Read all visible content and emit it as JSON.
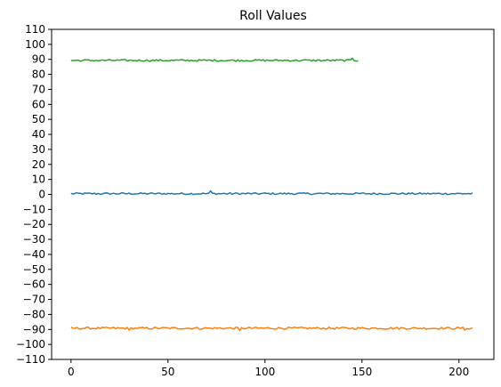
{
  "chart_data": {
    "type": "line",
    "title": "Roll Values",
    "xlabel": "",
    "ylabel": "",
    "xlim": [
      -10,
      218
    ],
    "ylim": [
      -110,
      110
    ],
    "xticks": [
      0,
      50,
      100,
      150,
      200
    ],
    "yticks": [
      -110,
      -100,
      -90,
      -80,
      -70,
      -60,
      -50,
      -40,
      -30,
      -20,
      -10,
      0,
      10,
      20,
      30,
      40,
      50,
      60,
      70,
      80,
      90,
      100,
      110
    ],
    "grid": false,
    "legend": "none",
    "series": [
      {
        "color": "#1f77b4",
        "x_start": 0,
        "x_end": 207,
        "mean": 0.5,
        "noise": 0.6,
        "spikes": [
          {
            "x": 72,
            "y": 2.3
          }
        ]
      },
      {
        "color": "#ff7f0e",
        "x_start": 0,
        "x_end": 207,
        "mean": -89.2,
        "noise": 0.7,
        "spikes": [
          {
            "x": 30,
            "y": -90.5
          },
          {
            "x": 87,
            "y": -90.6
          },
          {
            "x": 203,
            "y": -90.5
          }
        ]
      },
      {
        "color": "#2ca02c",
        "x_start": 0,
        "x_end": 148,
        "mean": 89.3,
        "noise": 0.6,
        "spikes": [
          {
            "x": 145,
            "y": 90.8
          }
        ]
      }
    ]
  }
}
